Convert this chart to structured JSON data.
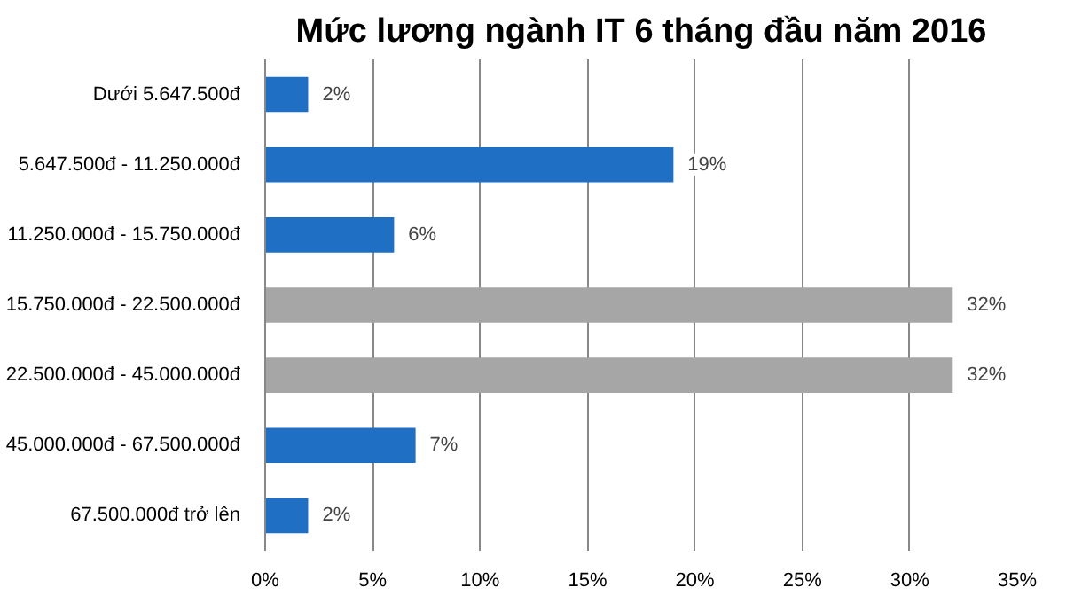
{
  "chart_data": {
    "type": "bar",
    "orientation": "horizontal",
    "title": "Mức lương ngành IT 6 tháng đầu năm 2016",
    "categories": [
      "Dưới 5.647.500đ",
      "5.647.500đ - 11.250.000đ",
      "11.250.000đ - 15.750.000đ",
      "15.750.000đ - 22.500.000đ",
      "22.500.000đ - 45.000.000đ",
      "45.000.000đ - 67.500.000đ",
      "67.500.000đ trở lên"
    ],
    "values": [
      2,
      19,
      6,
      32,
      32,
      7,
      2
    ],
    "colors": [
      "#1f6fc5",
      "#1f6fc5",
      "#1f6fc5",
      "#a6a6a6",
      "#a6a6a6",
      "#1f6fc5",
      "#1f6fc5"
    ],
    "value_labels": [
      "2%",
      "19%",
      "6%",
      "32%",
      "32%",
      "7%",
      "2%"
    ],
    "xlim": [
      0,
      35
    ],
    "xticks": [
      {
        "value": 0,
        "label": "0%"
      },
      {
        "value": 5,
        "label": "5%"
      },
      {
        "value": 10,
        "label": "10%"
      },
      {
        "value": 15,
        "label": "15%"
      },
      {
        "value": 20,
        "label": "20%"
      },
      {
        "value": 25,
        "label": "25%"
      },
      {
        "value": 30,
        "label": "30%"
      },
      {
        "value": 35,
        "label": "35%"
      }
    ],
    "grid": "x"
  }
}
